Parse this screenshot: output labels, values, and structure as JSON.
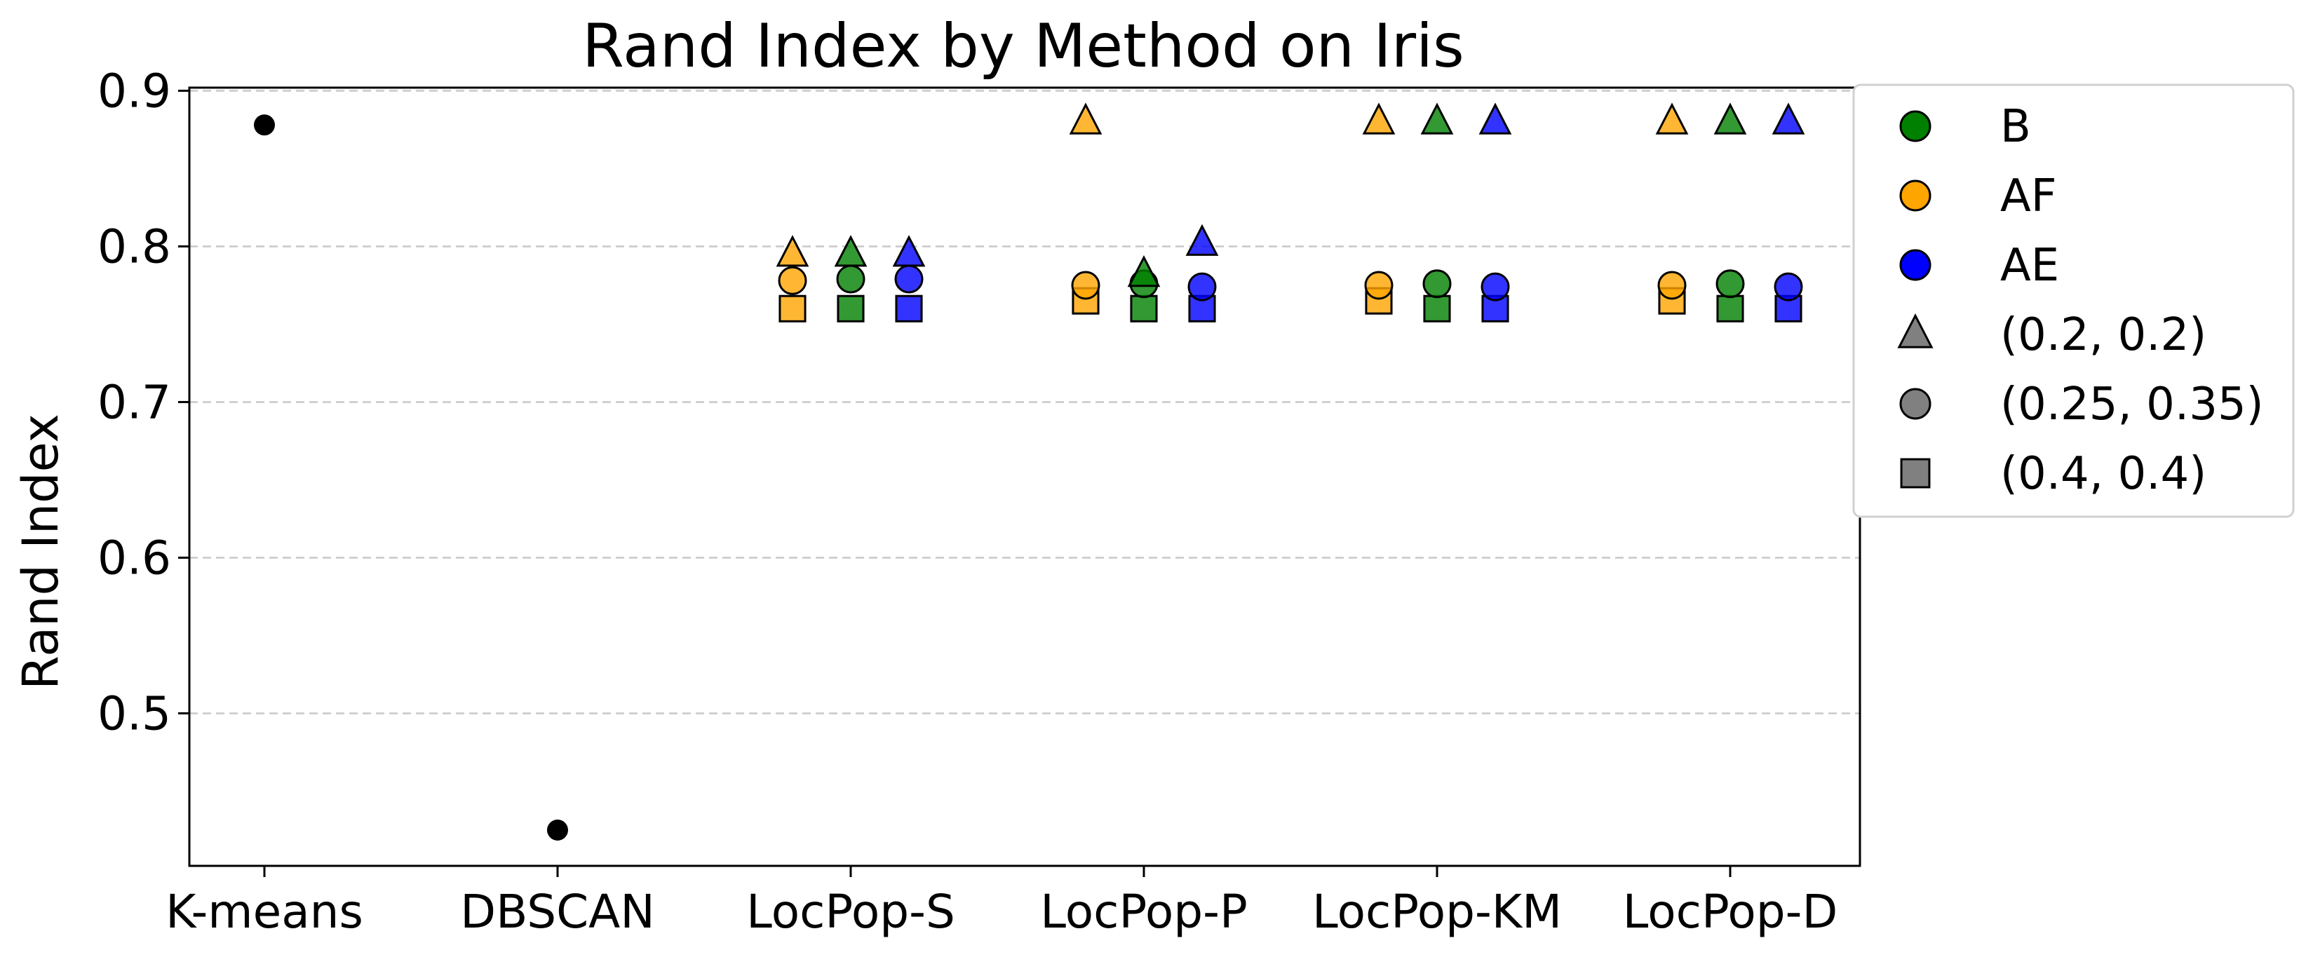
{
  "chart_data": {
    "type": "scatter",
    "title": "Rand Index by Method on Iris",
    "xlabel": "",
    "ylabel": "Rand Index",
    "categories": [
      "K-means",
      "DBSCAN",
      "LocPop-S",
      "LocPop-P",
      "LocPop-KM",
      "LocPop-D"
    ],
    "ylim": [
      0.402,
      0.902
    ],
    "yticks": [
      0.5,
      0.6,
      0.7,
      0.8,
      0.9
    ],
    "ytick_labels": [
      "0.5",
      "0.6",
      "0.7",
      "0.8",
      "0.9"
    ],
    "grid": "y-dashed",
    "legend_position": "outside-right-top",
    "colors": {
      "B": "#008000",
      "AF": "#FFA500",
      "AE": "#0000FF",
      "neutral": "#808080",
      "baseline": "#000000"
    },
    "legend": {
      "colors": [
        {
          "label": "B",
          "color": "#008000"
        },
        {
          "label": "AF",
          "color": "#FFA500"
        },
        {
          "label": "AE",
          "color": "#0000FF"
        }
      ],
      "markers": [
        {
          "label": "(0.2, 0.2)",
          "marker": "triangle"
        },
        {
          "label": "(0.25, 0.35)",
          "marker": "circle"
        },
        {
          "label": "(0.4, 0.4)",
          "marker": "square"
        }
      ]
    },
    "baselines": [
      {
        "category": "K-means",
        "value": 0.878
      },
      {
        "category": "DBSCAN",
        "value": 0.425
      }
    ],
    "series": [
      {
        "category": "LocPop-S",
        "color_group": "AF",
        "params": "(0.2, 0.2)",
        "value": 0.795
      },
      {
        "category": "LocPop-S",
        "color_group": "AF",
        "params": "(0.25, 0.35)",
        "value": 0.778
      },
      {
        "category": "LocPop-S",
        "color_group": "AF",
        "params": "(0.4, 0.4)",
        "value": 0.76
      },
      {
        "category": "LocPop-S",
        "color_group": "B",
        "params": "(0.2, 0.2)",
        "value": 0.795
      },
      {
        "category": "LocPop-S",
        "color_group": "B",
        "params": "(0.25, 0.35)",
        "value": 0.779
      },
      {
        "category": "LocPop-S",
        "color_group": "B",
        "params": "(0.4, 0.4)",
        "value": 0.76
      },
      {
        "category": "LocPop-S",
        "color_group": "AE",
        "params": "(0.2, 0.2)",
        "value": 0.795
      },
      {
        "category": "LocPop-S",
        "color_group": "AE",
        "params": "(0.25, 0.35)",
        "value": 0.779
      },
      {
        "category": "LocPop-S",
        "color_group": "AE",
        "params": "(0.4, 0.4)",
        "value": 0.76
      },
      {
        "category": "LocPop-P",
        "color_group": "AF",
        "params": "(0.2, 0.2)",
        "value": 0.88
      },
      {
        "category": "LocPop-P",
        "color_group": "AF",
        "params": "(0.25, 0.35)",
        "value": 0.775
      },
      {
        "category": "LocPop-P",
        "color_group": "AF",
        "params": "(0.4, 0.4)",
        "value": 0.765
      },
      {
        "category": "LocPop-P",
        "color_group": "B",
        "params": "(0.2, 0.2)",
        "value": 0.782
      },
      {
        "category": "LocPop-P",
        "color_group": "B",
        "params": "(0.25, 0.35)",
        "value": 0.776
      },
      {
        "category": "LocPop-P",
        "color_group": "B",
        "params": "(0.4, 0.4)",
        "value": 0.76
      },
      {
        "category": "LocPop-P",
        "color_group": "AE",
        "params": "(0.2, 0.2)",
        "value": 0.802
      },
      {
        "category": "LocPop-P",
        "color_group": "AE",
        "params": "(0.25, 0.35)",
        "value": 0.774
      },
      {
        "category": "LocPop-P",
        "color_group": "AE",
        "params": "(0.4, 0.4)",
        "value": 0.76
      },
      {
        "category": "LocPop-KM",
        "color_group": "AF",
        "params": "(0.2, 0.2)",
        "value": 0.88
      },
      {
        "category": "LocPop-KM",
        "color_group": "AF",
        "params": "(0.25, 0.35)",
        "value": 0.775
      },
      {
        "category": "LocPop-KM",
        "color_group": "AF",
        "params": "(0.4, 0.4)",
        "value": 0.765
      },
      {
        "category": "LocPop-KM",
        "color_group": "B",
        "params": "(0.2, 0.2)",
        "value": 0.88
      },
      {
        "category": "LocPop-KM",
        "color_group": "B",
        "params": "(0.25, 0.35)",
        "value": 0.776
      },
      {
        "category": "LocPop-KM",
        "color_group": "B",
        "params": "(0.4, 0.4)",
        "value": 0.76
      },
      {
        "category": "LocPop-KM",
        "color_group": "AE",
        "params": "(0.2, 0.2)",
        "value": 0.88
      },
      {
        "category": "LocPop-KM",
        "color_group": "AE",
        "params": "(0.25, 0.35)",
        "value": 0.774
      },
      {
        "category": "LocPop-KM",
        "color_group": "AE",
        "params": "(0.4, 0.4)",
        "value": 0.76
      },
      {
        "category": "LocPop-D",
        "color_group": "AF",
        "params": "(0.2, 0.2)",
        "value": 0.88
      },
      {
        "category": "LocPop-D",
        "color_group": "AF",
        "params": "(0.25, 0.35)",
        "value": 0.775
      },
      {
        "category": "LocPop-D",
        "color_group": "AF",
        "params": "(0.4, 0.4)",
        "value": 0.765
      },
      {
        "category": "LocPop-D",
        "color_group": "B",
        "params": "(0.2, 0.2)",
        "value": 0.88
      },
      {
        "category": "LocPop-D",
        "color_group": "B",
        "params": "(0.25, 0.35)",
        "value": 0.776
      },
      {
        "category": "LocPop-D",
        "color_group": "B",
        "params": "(0.4, 0.4)",
        "value": 0.76
      },
      {
        "category": "LocPop-D",
        "color_group": "AE",
        "params": "(0.2, 0.2)",
        "value": 0.88
      },
      {
        "category": "LocPop-D",
        "color_group": "AE",
        "params": "(0.25, 0.35)",
        "value": 0.774
      },
      {
        "category": "LocPop-D",
        "color_group": "AE",
        "params": "(0.4, 0.4)",
        "value": 0.76
      }
    ]
  }
}
